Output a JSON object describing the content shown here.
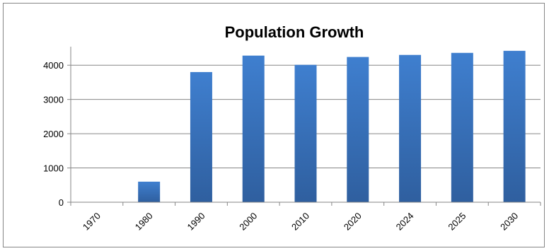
{
  "chart_data": {
    "type": "bar",
    "title": "Population Growth",
    "xlabel": "",
    "ylabel": "",
    "categories": [
      "1970",
      "1980",
      "1990",
      "2000",
      "2010",
      "2020",
      "2024",
      "2025",
      "2030"
    ],
    "values": [
      0,
      600,
      3800,
      4280,
      4010,
      4240,
      4300,
      4360,
      4420
    ],
    "ylim": [
      0,
      4500
    ],
    "yticks": [
      0,
      1000,
      2000,
      3000,
      4000
    ],
    "grid": true,
    "legend": "none",
    "colors": {
      "bar": "#3f7fcf",
      "bar_dark": "#2f5f9f",
      "grid": "#868686"
    }
  }
}
